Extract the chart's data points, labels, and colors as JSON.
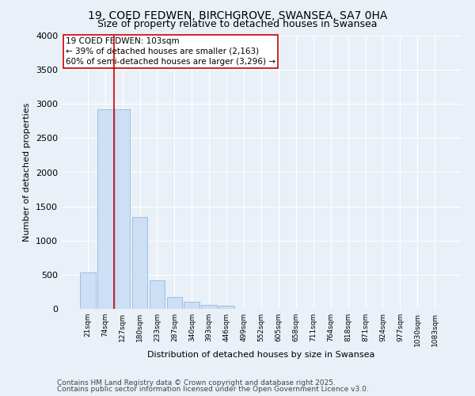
{
  "title1": "19, COED FEDWEN, BIRCHGROVE, SWANSEA, SA7 0HA",
  "title2": "Size of property relative to detached houses in Swansea",
  "xlabel": "Distribution of detached houses by size in Swansea",
  "ylabel": "Number of detached properties",
  "categories": [
    "21sqm",
    "74sqm",
    "127sqm",
    "180sqm",
    "233sqm",
    "287sqm",
    "340sqm",
    "393sqm",
    "446sqm",
    "499sqm",
    "552sqm",
    "605sqm",
    "658sqm",
    "711sqm",
    "764sqm",
    "818sqm",
    "871sqm",
    "924sqm",
    "977sqm",
    "1030sqm",
    "1083sqm"
  ],
  "values": [
    530,
    2920,
    2920,
    1350,
    420,
    175,
    100,
    55,
    50,
    0,
    0,
    0,
    0,
    0,
    0,
    0,
    0,
    0,
    0,
    0,
    0
  ],
  "bar_color": "#ccdff5",
  "bar_edge_color": "#9bbfe0",
  "annotation_text": "19 COED FEDWEN: 103sqm\n← 39% of detached houses are smaller (2,163)\n60% of semi-detached houses are larger (3,296) →",
  "annotation_box_color": "#ffffff",
  "annotation_box_edge_color": "#cc0000",
  "red_line_color": "#cc0000",
  "ylim": [
    0,
    4000
  ],
  "yticks": [
    0,
    500,
    1000,
    1500,
    2000,
    2500,
    3000,
    3500,
    4000
  ],
  "footer1": "Contains HM Land Registry data © Crown copyright and database right 2025.",
  "footer2": "Contains public sector information licensed under the Open Government Licence v3.0.",
  "bg_color": "#eaf0f8",
  "plot_bg_color": "#eaf0f8",
  "grid_color": "#ffffff",
  "title1_fontsize": 10,
  "title2_fontsize": 9,
  "annotation_fontsize": 7.5,
  "footer_fontsize": 6.5,
  "ylabel_fontsize": 8,
  "xlabel_fontsize": 8
}
